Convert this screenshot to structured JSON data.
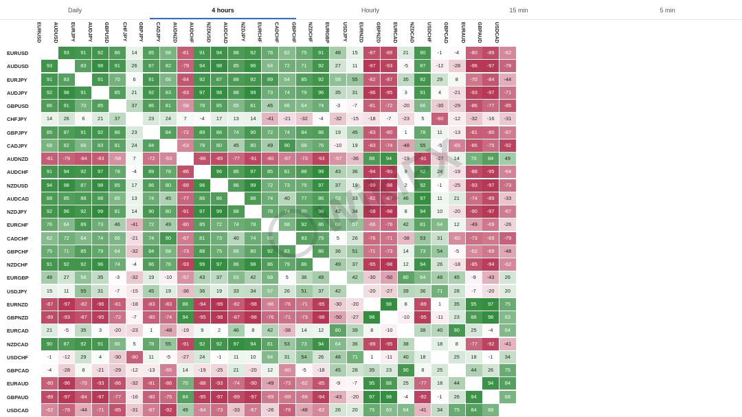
{
  "tabs": [
    {
      "label": "Daily",
      "active": false
    },
    {
      "label": "4 hours",
      "active": true
    },
    {
      "label": "Hourly",
      "active": false
    },
    {
      "label": "15 min",
      "active": false
    },
    {
      "label": "5 min",
      "active": false
    }
  ],
  "colors": {
    "positive": "#2e8b3a",
    "negative": "#b5304f",
    "active_tab_underline": "#2f6fd1"
  },
  "watermark": "WikiFX",
  "matrix": {
    "columns": [
      "EURUSD",
      "AUDUSD",
      "EURJPY",
      "AUDJPY",
      "GBPUSD",
      "CHFJPY",
      "GBPJPY",
      "CADJPY",
      "AUDNZD",
      "AUDCHF",
      "NZDUSD",
      "AUDCAD",
      "NZDJPY",
      "EURCHF",
      "CADCHF",
      "GBPCHF",
      "NZDCHF",
      "EURGBP",
      "USDJPY",
      "EURNZD",
      "GBPNZD",
      "EURCAD",
      "NZDCAD",
      "USDCHF",
      "GBPCAD",
      "EURAUD",
      "GBPAUD",
      "USDCAD"
    ],
    "rows": [
      {
        "label": "EURUSD",
        "values": [
          null,
          93,
          91,
          92,
          86,
          14,
          85,
          68,
          -81,
          91,
          94,
          88,
          92,
          76,
          62,
          75,
          91,
          48,
          15,
          -87,
          -89,
          21,
          90,
          -1,
          -4,
          -80,
          -89,
          -62
        ]
      },
      {
        "label": "AUDUSD",
        "values": [
          93,
          null,
          83,
          98,
          91,
          26,
          87,
          82,
          -79,
          94,
          98,
          85,
          96,
          64,
          72,
          71,
          92,
          27,
          11,
          -97,
          -93,
          -5,
          87,
          -12,
          -28,
          -96,
          -97,
          -78
        ]
      },
      {
        "label": "EURJPY",
        "values": [
          91,
          83,
          null,
          91,
          70,
          6,
          91,
          66,
          -84,
          92,
          87,
          88,
          92,
          89,
          64,
          85,
          92,
          58,
          55,
          -82,
          -87,
          35,
          92,
          29,
          8,
          -70,
          -84,
          -44
        ]
      },
      {
        "label": "AUDJPY",
        "values": [
          92,
          98,
          91,
          null,
          85,
          21,
          92,
          83,
          -83,
          97,
          98,
          88,
          99,
          73,
          74,
          79,
          96,
          35,
          31,
          -96,
          -95,
          3,
          91,
          4,
          -21,
          -93,
          -97,
          -71
        ]
      },
      {
        "label": "GBPUSD",
        "values": [
          86,
          91,
          70,
          85,
          null,
          37,
          86,
          81,
          -58,
          78,
          85,
          65,
          81,
          46,
          66,
          64,
          74,
          -3,
          -7,
          -81,
          -72,
          -20,
          66,
          -30,
          -29,
          -86,
          -77,
          -85
        ]
      },
      {
        "label": "CHFJPY",
        "values": [
          14,
          26,
          6,
          21,
          37,
          null,
          23,
          24,
          7,
          -4,
          17,
          13,
          14,
          -41,
          -21,
          -32,
          -4,
          -32,
          -15,
          -18,
          -7,
          -23,
          5,
          -80,
          -12,
          -32,
          -16,
          -31
        ]
      },
      {
        "label": "GBPJPY",
        "values": [
          85,
          87,
          91,
          92,
          86,
          23,
          null,
          84,
          -72,
          89,
          86,
          74,
          90,
          72,
          74,
          84,
          86,
          19,
          45,
          -83,
          -80,
          1,
          78,
          11,
          -13,
          -81,
          -80,
          -67
        ]
      },
      {
        "label": "CADJPY",
        "values": [
          68,
          82,
          66,
          83,
          81,
          24,
          84,
          null,
          -63,
          78,
          80,
          45,
          80,
          49,
          90,
          68,
          76,
          -10,
          19,
          -83,
          -74,
          -48,
          55,
          -5,
          -65,
          -86,
          -75,
          -92
        ]
      },
      {
        "label": "AUDNZD",
        "values": [
          -81,
          -79,
          -84,
          -83,
          -58,
          7,
          -72,
          -63,
          null,
          -86,
          -89,
          -77,
          -91,
          -80,
          -67,
          -73,
          -93,
          -57,
          -36,
          88,
          94,
          -19,
          -91,
          -27,
          14,
          70,
          84,
          49
        ]
      },
      {
        "label": "AUDCHF",
        "values": [
          91,
          94,
          92,
          97,
          78,
          -4,
          89,
          78,
          -86,
          null,
          96,
          86,
          97,
          85,
          81,
          88,
          99,
          43,
          36,
          -94,
          -95,
          9,
          92,
          24,
          -19,
          -88,
          -95,
          -64
        ]
      },
      {
        "label": "NZDUSD",
        "values": [
          94,
          98,
          87,
          98,
          85,
          17,
          86,
          80,
          -89,
          96,
          null,
          86,
          99,
          72,
          73,
          75,
          97,
          37,
          19,
          -99,
          -98,
          2,
          92,
          -1,
          -25,
          -93,
          -97,
          -73
        ]
      },
      {
        "label": "AUDCAD",
        "values": [
          88,
          85,
          88,
          88,
          65,
          13,
          74,
          45,
          -77,
          86,
          86,
          null,
          88,
          74,
          40,
          77,
          86,
          63,
          33,
          -82,
          -87,
          46,
          97,
          11,
          21,
          -74,
          -89,
          -33
        ]
      },
      {
        "label": "NZDJPY",
        "values": [
          92,
          96,
          92,
          99,
          81,
          14,
          90,
          80,
          -91,
          97,
          99,
          88,
          null,
          78,
          74,
          80,
          98,
          42,
          34,
          -98,
          -98,
          8,
          94,
          10,
          -20,
          -90,
          -97,
          -67
        ]
      },
      {
        "label": "EURCHF",
        "values": [
          76,
          64,
          89,
          73,
          46,
          -41,
          72,
          49,
          -80,
          85,
          72,
          74,
          78,
          null,
          68,
          92,
          86,
          68,
          57,
          -66,
          -76,
          42,
          81,
          64,
          12,
          -49,
          -69,
          -26
        ]
      },
      {
        "label": "CADCHF",
        "values": [
          62,
          72,
          64,
          74,
          66,
          -21,
          74,
          90,
          -67,
          81,
          73,
          40,
          74,
          68,
          null,
          83,
          79,
          5,
          26,
          -76,
          -71,
          -38,
          53,
          31,
          -60,
          -73,
          -69,
          -79
        ]
      },
      {
        "label": "GBPCHF",
        "values": [
          75,
          71,
          85,
          79,
          64,
          -32,
          84,
          68,
          -73,
          88,
          75,
          66,
          80,
          92,
          83,
          null,
          86,
          36,
          51,
          -71,
          -73,
          14,
          73,
          54,
          -5,
          -62,
          -69,
          -48
        ]
      },
      {
        "label": "NZDCHF",
        "values": [
          91,
          92,
          92,
          96,
          74,
          -4,
          86,
          76,
          -93,
          99,
          97,
          86,
          98,
          86,
          79,
          86,
          null,
          49,
          37,
          -95,
          -98,
          12,
          94,
          26,
          -18,
          -85,
          -94,
          -62
        ]
      },
      {
        "label": "EURGBP",
        "values": [
          48,
          27,
          58,
          35,
          -3,
          -32,
          19,
          -10,
          -57,
          43,
          37,
          63,
          42,
          68,
          5,
          36,
          49,
          null,
          42,
          -30,
          -50,
          80,
          64,
          48,
          45,
          -9,
          -43,
          26
        ]
      },
      {
        "label": "USDJPY",
        "values": [
          15,
          11,
          55,
          31,
          -7,
          -15,
          45,
          19,
          -36,
          36,
          19,
          33,
          34,
          57,
          26,
          51,
          37,
          42,
          null,
          -20,
          -27,
          39,
          36,
          71,
          28,
          -7,
          -20,
          20
        ]
      },
      {
        "label": "EURNZD",
        "values": [
          -87,
          -97,
          -82,
          -96,
          -81,
          -18,
          -83,
          -83,
          88,
          -94,
          -99,
          -82,
          -98,
          -66,
          -76,
          -71,
          -95,
          -30,
          -20,
          null,
          98,
          8,
          -89,
          1,
          35,
          95,
          97,
          75
        ]
      },
      {
        "label": "GBPNZD",
        "values": [
          -89,
          -93,
          -87,
          -95,
          -72,
          -7,
          -80,
          -74,
          94,
          -95,
          -98,
          -87,
          -98,
          -76,
          -71,
          -73,
          -98,
          -50,
          -27,
          98,
          null,
          -10,
          -95,
          -11,
          23,
          88,
          98,
          63
        ]
      },
      {
        "label": "EURCAD",
        "values": [
          21,
          -5,
          35,
          3,
          -20,
          -23,
          1,
          -48,
          -19,
          9,
          2,
          46,
          8,
          42,
          -38,
          14,
          12,
          80,
          39,
          8,
          -10,
          null,
          38,
          40,
          90,
          25,
          -4,
          64
        ]
      },
      {
        "label": "NZDCAD",
        "values": [
          90,
          87,
          92,
          91,
          66,
          5,
          78,
          55,
          -91,
          92,
          92,
          97,
          94,
          81,
          53,
          73,
          94,
          64,
          36,
          -89,
          -95,
          38,
          null,
          18,
          8,
          -77,
          -92,
          -41
        ]
      },
      {
        "label": "USDCHF",
        "values": [
          -1,
          -12,
          29,
          4,
          -30,
          -80,
          11,
          -5,
          -27,
          24,
          -1,
          11,
          10,
          64,
          31,
          54,
          26,
          48,
          71,
          1,
          -11,
          40,
          18,
          null,
          25,
          18,
          -1,
          34
        ]
      },
      {
        "label": "GBPCAD",
        "values": [
          -4,
          -28,
          8,
          -21,
          -29,
          -12,
          -13,
          -65,
          14,
          -19,
          -25,
          21,
          -20,
          12,
          -60,
          -5,
          -18,
          45,
          28,
          35,
          23,
          90,
          8,
          25,
          null,
          44,
          26,
          75
        ]
      },
      {
        "label": "EURAUD",
        "values": [
          -80,
          -96,
          -70,
          -93,
          -86,
          -32,
          -81,
          -86,
          70,
          -88,
          -93,
          -74,
          -90,
          -49,
          -73,
          -62,
          -85,
          -9,
          -7,
          95,
          88,
          25,
          -77,
          18,
          44,
          null,
          94,
          84
        ]
      },
      {
        "label": "GBPAUD",
        "values": [
          -89,
          -97,
          -84,
          -97,
          -77,
          -16,
          -80,
          -75,
          84,
          -95,
          -97,
          -89,
          -97,
          -69,
          -69,
          -69,
          -94,
          -43,
          -20,
          97,
          98,
          -4,
          -92,
          -1,
          26,
          94,
          null,
          68
        ]
      },
      {
        "label": "USDCAD",
        "values": [
          -62,
          -78,
          -44,
          -71,
          -85,
          -31,
          -67,
          -92,
          49,
          -64,
          -73,
          -33,
          -67,
          -26,
          -79,
          -48,
          -62,
          26,
          20,
          75,
          63,
          64,
          -41,
          34,
          75,
          84,
          68,
          null
        ]
      }
    ]
  }
}
